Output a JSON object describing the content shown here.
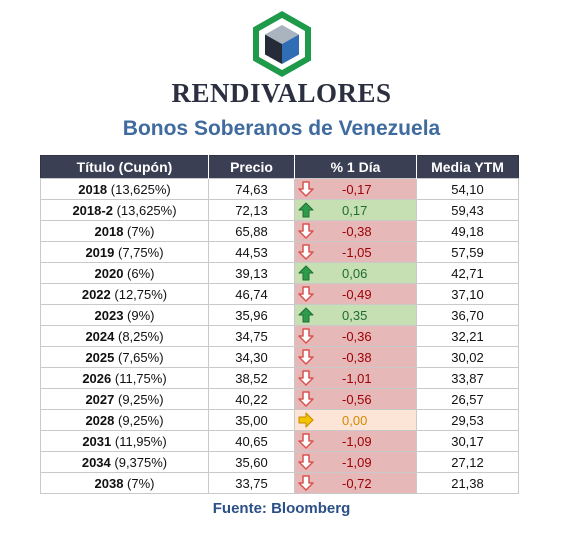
{
  "header": {
    "brand": "RENDIVALORES",
    "subtitle": "Bonos Soberanos de Venezuela",
    "logo_icon": "green-hexagon-cube-logo"
  },
  "table": {
    "columns": [
      "Título (Cupón)",
      "Precio",
      "% 1 Día",
      "Media YTM"
    ],
    "rows": [
      {
        "year": "2018",
        "coupon": "(13,625%)",
        "price": "74,63",
        "change": "-0,17",
        "trend": "down",
        "ytm": "54,10"
      },
      {
        "year": "2018-2",
        "coupon": "(13,625%)",
        "price": "72,13",
        "change": "0,17",
        "trend": "up",
        "ytm": "59,43"
      },
      {
        "year": "2018",
        "coupon": "(7%)",
        "price": "65,88",
        "change": "-0,38",
        "trend": "down",
        "ytm": "49,18"
      },
      {
        "year": "2019",
        "coupon": "(7,75%)",
        "price": "44,53",
        "change": "-1,05",
        "trend": "down",
        "ytm": "57,59"
      },
      {
        "year": "2020",
        "coupon": "(6%)",
        "price": "39,13",
        "change": "0,06",
        "trend": "up",
        "ytm": "42,71"
      },
      {
        "year": "2022",
        "coupon": "(12,75%)",
        "price": "46,74",
        "change": "-0,49",
        "trend": "down",
        "ytm": "37,10"
      },
      {
        "year": "2023",
        "coupon": "(9%)",
        "price": "35,96",
        "change": "0,35",
        "trend": "up",
        "ytm": "36,70"
      },
      {
        "year": "2024",
        "coupon": "(8,25%)",
        "price": "34,75",
        "change": "-0,36",
        "trend": "down",
        "ytm": "32,21"
      },
      {
        "year": "2025",
        "coupon": "(7,65%)",
        "price": "34,30",
        "change": "-0,38",
        "trend": "down",
        "ytm": "30,02"
      },
      {
        "year": "2026",
        "coupon": "(11,75%)",
        "price": "38,52",
        "change": "-1,01",
        "trend": "down",
        "ytm": "33,87"
      },
      {
        "year": "2027",
        "coupon": "(9,25%)",
        "price": "40,22",
        "change": "-0,56",
        "trend": "down",
        "ytm": "26,57"
      },
      {
        "year": "2028",
        "coupon": "(9,25%)",
        "price": "35,00",
        "change": "0,00",
        "trend": "flat",
        "ytm": "29,53"
      },
      {
        "year": "2031",
        "coupon": "(11,95%)",
        "price": "40,65",
        "change": "-1,09",
        "trend": "down",
        "ytm": "30,17"
      },
      {
        "year": "2034",
        "coupon": "(9,375%)",
        "price": "35,60",
        "change": "-1,09",
        "trend": "down",
        "ytm": "27,12"
      },
      {
        "year": "2038",
        "coupon": "(7%)",
        "price": "33,75",
        "change": "-0,72",
        "trend": "down",
        "ytm": "21,38"
      }
    ]
  },
  "footer": {
    "source": "Fuente: Bloomberg"
  },
  "colors": {
    "header_bg": "#3a3f54",
    "down_bg": "#e6b8b7",
    "up_bg": "#c6e0b4",
    "flat_bg": "#fce4d6",
    "subtitle": "#3f6b9e",
    "logo_green": "#1e9a4a",
    "logo_blue": "#2f6db5"
  }
}
